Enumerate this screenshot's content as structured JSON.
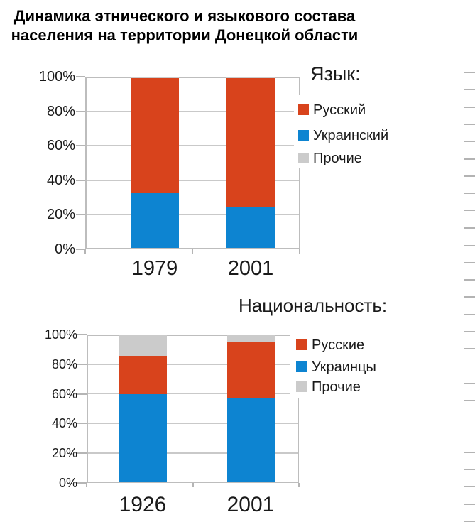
{
  "page": {
    "title_line1": "Динамика этнического и языкового состава",
    "title_line2": "населения на территории Донецкой области"
  },
  "colors": {
    "russian_red": "#d8431c",
    "ukrainian_blue": "#0d84d1",
    "other_gray": "#cbcbcb"
  },
  "chart_data": [
    {
      "type": "bar",
      "stacked": true,
      "units": "percent",
      "title": "Язык:",
      "categories": [
        "1979",
        "2001"
      ],
      "series": [
        {
          "name": "Русский",
          "color_key": "russian_red",
          "stack_index": 1,
          "values": [
            67,
            75
          ]
        },
        {
          "name": "Украинский",
          "color_key": "ukrainian_blue",
          "stack_index": 0,
          "values": [
            32,
            24
          ]
        },
        {
          "name": "Прочие",
          "color_key": "other_gray",
          "stack_index": 2,
          "values": [
            1,
            1
          ]
        }
      ],
      "y_ticks": [
        "100%",
        "80%",
        "60%",
        "40%",
        "20%",
        "0%"
      ],
      "ylim": [
        0,
        100
      ],
      "grid": true,
      "legend_position": "right"
    },
    {
      "type": "bar",
      "stacked": true,
      "units": "percent",
      "title": "Национальность:",
      "categories": [
        "1926",
        "2001"
      ],
      "series": [
        {
          "name": "Русские",
          "color_key": "russian_red",
          "stack_index": 1,
          "values": [
            26,
            38
          ]
        },
        {
          "name": "Украинцы",
          "color_key": "ukrainian_blue",
          "stack_index": 0,
          "values": [
            59.5,
            57
          ]
        },
        {
          "name": "Прочие",
          "color_key": "other_gray",
          "stack_index": 2,
          "values": [
            14.5,
            5
          ]
        }
      ],
      "y_ticks": [
        "100%",
        "80%",
        "60%",
        "40%",
        "20%",
        "0%"
      ],
      "ylim": [
        0,
        100
      ],
      "grid": true,
      "legend_position": "right"
    }
  ]
}
